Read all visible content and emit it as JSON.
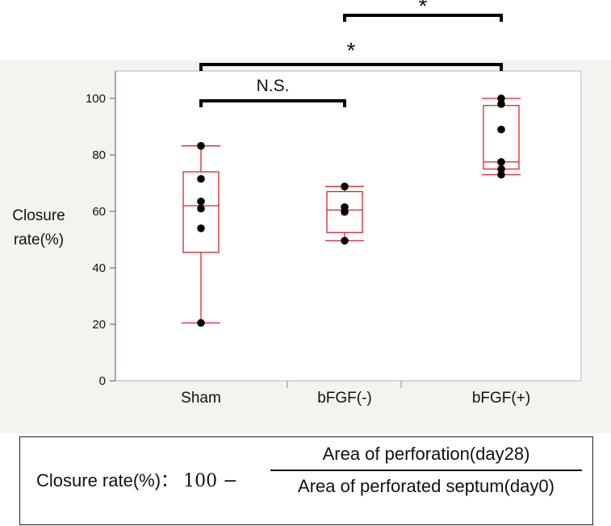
{
  "chart_data": {
    "type": "box",
    "ylabel_lines": [
      "Closure",
      "rate(%)"
    ],
    "ylim": [
      0,
      110
    ],
    "yticks": [
      0,
      20,
      40,
      60,
      80,
      100
    ],
    "categories": [
      "Sham",
      "bFGF(-)",
      "bFGF(+)"
    ],
    "boxes": [
      {
        "name": "Sham",
        "min": 20.5,
        "q1": 45.5,
        "median": 62,
        "q3": 74,
        "max": 83.2,
        "points": [
          20.5,
          54,
          61,
          63.5,
          71.5,
          83.2
        ]
      },
      {
        "name": "bFGF(-)",
        "min": 49.6,
        "q1": 52.5,
        "median": 60.5,
        "q3": 67,
        "max": 68.8,
        "points": [
          49.6,
          59.8,
          61.5,
          68.8
        ]
      },
      {
        "name": "bFGF(+)",
        "min": 73,
        "q1": 75,
        "median": 77.5,
        "q3": 97.5,
        "max": 100,
        "points": [
          73,
          75,
          77.5,
          89,
          98,
          100
        ]
      }
    ],
    "significance": [
      {
        "from": "Sham",
        "to": "bFGF(-)",
        "label": "N.S."
      },
      {
        "from": "Sham",
        "to": "bFGF(+)",
        "label": "*"
      },
      {
        "from": "bFGF(-)",
        "to": "bFGF(+)",
        "label": "*"
      }
    ],
    "colors": {
      "box": "#e0202a",
      "points": "#000000",
      "brackets": "#000000"
    }
  },
  "formula": {
    "prefix": "Closure rate(%)：",
    "constant": "100 −",
    "numerator": "Area of perforation(day28)",
    "denominator": "Area of perforated septum(day0)"
  }
}
